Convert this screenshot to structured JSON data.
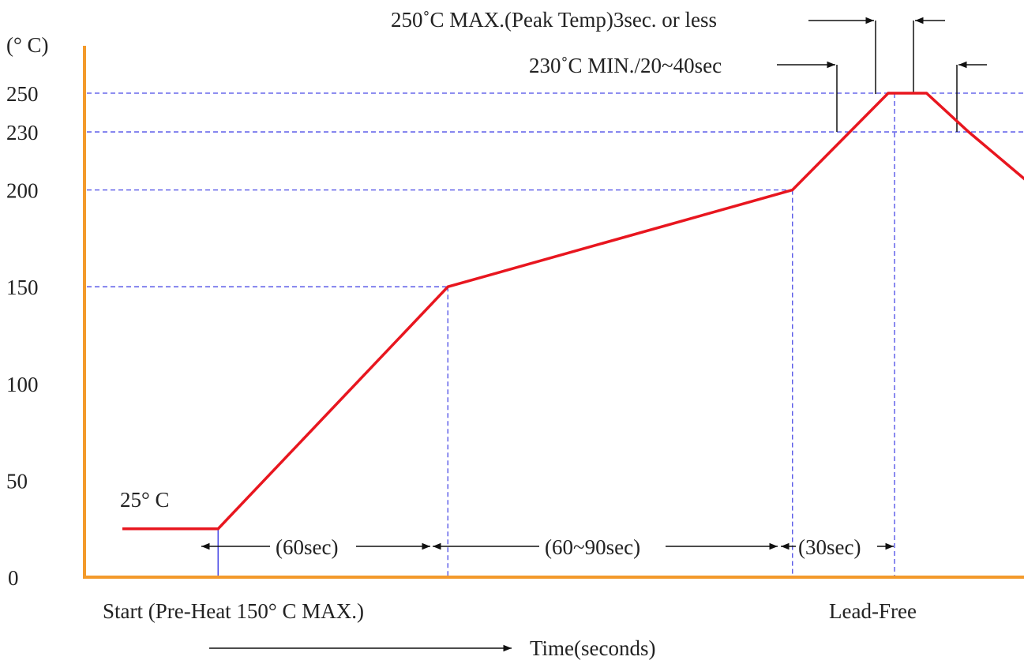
{
  "chart_data": {
    "type": "line",
    "title": "",
    "ylabel": "(° C)",
    "xlabel": "Time(seconds)",
    "ylim": [
      0,
      250
    ],
    "yticks": [
      0,
      50,
      100,
      150,
      200,
      230,
      250
    ],
    "grid": false,
    "series": [
      {
        "name": "Lead-Free",
        "points": [
          {
            "x": 0,
            "y": 25
          },
          {
            "x": 25,
            "y": 25
          },
          {
            "x": 85,
            "y": 150
          },
          {
            "x": 175,
            "y": 200
          },
          {
            "x": 190,
            "y": 230
          },
          {
            "x": 200,
            "y": 250
          },
          {
            "x": 210,
            "y": 250
          },
          {
            "x": 221,
            "y": 230
          },
          {
            "x": 239,
            "y": 200
          }
        ]
      }
    ],
    "annotations": {
      "start_temp": "25° C",
      "start_label": "Start (Pre-Heat 150° C MAX.)",
      "profile_label": "Lead-Free",
      "time_arrow_label": "Time(seconds)",
      "interval_1": "(60sec)",
      "interval_2": "(60~90sec)",
      "interval_3": "(30sec)",
      "peak_note": "250˚C MAX.(Peak Temp)3sec. or less",
      "min_note": "230˚C MIN./20~40sec"
    },
    "colors": {
      "axis": "#f39a2b",
      "curve": "#e8161f",
      "guide": "#4a4ae6",
      "annotation": "#111111"
    }
  }
}
